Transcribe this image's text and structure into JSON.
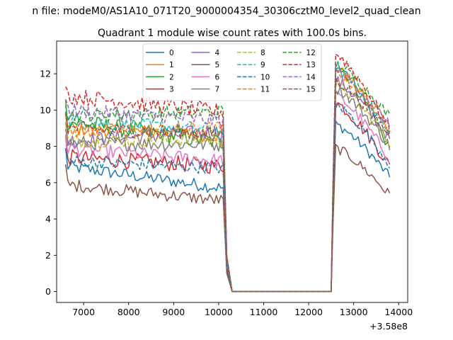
{
  "chart_data": {
    "type": "line",
    "suptitle": "n file: modeM0/AS1A10_071T20_9000004354_30306cztM0_level2_quad_clean",
    "title": "Quadrant 1 module wise count rates with 100.0s bins.",
    "xlabel": "",
    "ylabel": "",
    "x_offset_label": "+3.58e8",
    "xlim": [
      6400,
      14200
    ],
    "ylim": [
      -0.6,
      13.8
    ],
    "x_ticks": [
      7000,
      8000,
      9000,
      10000,
      11000,
      12000,
      13000,
      14000
    ],
    "y_ticks": [
      0,
      2,
      4,
      6,
      8,
      10,
      12
    ],
    "gap_x": [
      10300,
      12500
    ],
    "segments": {
      "first": {
        "x_start": 6600,
        "x_end": 10100,
        "step": 50
      },
      "second": {
        "x_start": 12600,
        "x_end": 13800,
        "step": 50
      }
    },
    "series": [
      {
        "name": "0",
        "color": "#1f77b4",
        "dash": false,
        "first_level": 6.9,
        "first_end": 5.7,
        "first_noise": 0.35,
        "second_peak": 9.2,
        "second_end": 6.3
      },
      {
        "name": "1",
        "color": "#ff7f0e",
        "dash": false,
        "first_level": 9.0,
        "first_end": 8.6,
        "first_noise": 0.4,
        "second_peak": 12.3,
        "second_end": 8.7
      },
      {
        "name": "2",
        "color": "#2ca02c",
        "dash": false,
        "first_level": 9.4,
        "first_end": 8.2,
        "first_noise": 0.5,
        "second_peak": 12.6,
        "second_end": 7.9
      },
      {
        "name": "3",
        "color": "#d62728",
        "dash": false,
        "first_level": 7.4,
        "first_end": 6.9,
        "first_noise": 0.45,
        "second_peak": 10.4,
        "second_end": 6.9
      },
      {
        "name": "4",
        "color": "#9467bd",
        "dash": false,
        "first_level": 8.3,
        "first_end": 8.8,
        "first_noise": 0.45,
        "second_peak": 11.6,
        "second_end": 8.4
      },
      {
        "name": "5",
        "color": "#8c564b",
        "dash": false,
        "first_level": 5.9,
        "first_end": 5.0,
        "first_noise": 0.35,
        "second_peak": 7.9,
        "second_end": 5.3
      },
      {
        "name": "6",
        "color": "#e377c2",
        "dash": false,
        "first_level": 7.9,
        "first_end": 7.2,
        "first_noise": 0.4,
        "second_peak": 10.8,
        "second_end": 7.3
      },
      {
        "name": "7",
        "color": "#7f7f7f",
        "dash": false,
        "first_level": 8.2,
        "first_end": 8.1,
        "first_noise": 0.4,
        "second_peak": 11.2,
        "second_end": 8.0
      },
      {
        "name": "8",
        "color": "#bcbd22",
        "dash": true,
        "first_level": 8.3,
        "first_end": 8.4,
        "first_noise": 0.4,
        "second_peak": 11.4,
        "second_end": 8.2
      },
      {
        "name": "9",
        "color": "#17becf",
        "dash": true,
        "first_level": 9.4,
        "first_end": 8.9,
        "first_noise": 0.4,
        "second_peak": 12.3,
        "second_end": 8.6
      },
      {
        "name": "10",
        "color": "#1f77b4",
        "dash": true,
        "first_level": 7.2,
        "first_end": 6.8,
        "first_noise": 0.35,
        "second_peak": 10.3,
        "second_end": 7.0
      },
      {
        "name": "11",
        "color": "#ff7f0e",
        "dash": true,
        "first_level": 8.8,
        "first_end": 9.0,
        "first_noise": 0.4,
        "second_peak": 12.1,
        "second_end": 9.1
      },
      {
        "name": "12",
        "color": "#2ca02c",
        "dash": true,
        "first_level": 9.7,
        "first_end": 9.9,
        "first_noise": 0.4,
        "second_peak": 12.5,
        "second_end": 9.6
      },
      {
        "name": "13",
        "color": "#d62728",
        "dash": true,
        "first_level": 10.8,
        "first_end": 9.9,
        "first_noise": 0.45,
        "second_peak": 13.1,
        "second_end": 8.9
      },
      {
        "name": "14",
        "color": "#9467bd",
        "dash": true,
        "first_level": 10.0,
        "first_end": 9.4,
        "first_noise": 0.4,
        "second_peak": 12.2,
        "second_end": 9.1
      },
      {
        "name": "15",
        "color": "#8c564b",
        "dash": true,
        "first_level": 9.0,
        "first_end": 8.7,
        "first_noise": 0.4,
        "second_peak": 11.6,
        "second_end": 8.6
      }
    ],
    "legend_position": "top-center",
    "legend_columns": 4
  }
}
